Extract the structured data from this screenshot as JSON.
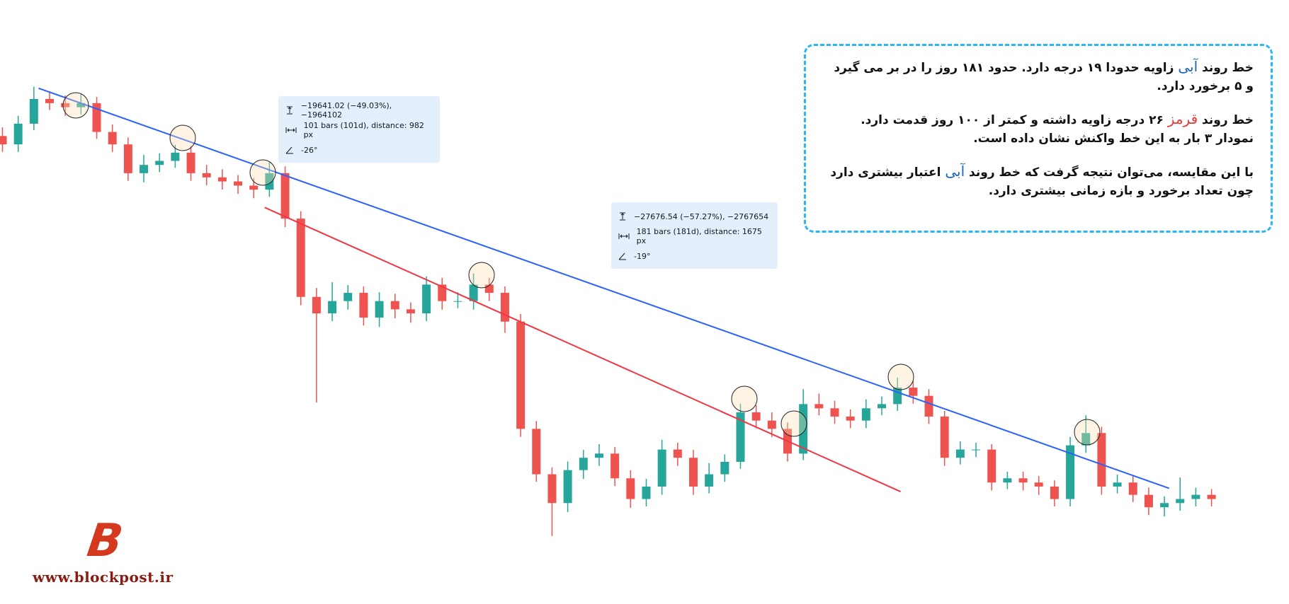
{
  "chart_data": {
    "type": "candlestick",
    "up_color": "#26a69a",
    "down_color": "#ef5350",
    "ylim": [
      15000,
      50000
    ],
    "open": [
      45000,
      44420,
      45850,
      47560,
      47270,
      46990,
      47270,
      45280,
      44420,
      42430,
      43000,
      43280,
      43850,
      42430,
      42140,
      41860,
      41570,
      41290,
      42430,
      39290,
      33880,
      32740,
      33590,
      34160,
      32450,
      33590,
      33020,
      32740,
      34730,
      33590,
      33590,
      34730,
      34160,
      32170,
      24760,
      21620,
      19630,
      21910,
      22760,
      23050,
      21340,
      19910,
      20770,
      23330,
      22760,
      20770,
      21620,
      22480,
      25900,
      25330,
      24760,
      23050,
      26470,
      26180,
      25610,
      25330,
      26180,
      26470,
      27610,
      27040,
      25610,
      22760,
      23330,
      23330,
      21050,
      21340,
      21050,
      20770,
      19910,
      23620,
      24470,
      20770,
      21050,
      20200,
      19340,
      19630,
      19910,
      20200
    ],
    "high": [
      45600,
      46400,
      48400,
      48100,
      47800,
      47900,
      47700,
      45800,
      44900,
      43700,
      43800,
      44400,
      44300,
      43000,
      42700,
      42300,
      42100,
      43200,
      42900,
      39800,
      34500,
      34900,
      34700,
      34600,
      34200,
      34100,
      33500,
      35300,
      35200,
      34200,
      35500,
      35200,
      34600,
      32700,
      25300,
      22100,
      22500,
      23300,
      23700,
      23500,
      21900,
      21300,
      24000,
      23800,
      23300,
      22400,
      23000,
      26500,
      26400,
      25900,
      25200,
      27500,
      27200,
      26700,
      26100,
      26800,
      27000,
      28300,
      28100,
      27500,
      26000,
      23900,
      23800,
      23700,
      21800,
      21800,
      21500,
      21200,
      24200,
      25700,
      24900,
      21600,
      21500,
      20700,
      20100,
      21400,
      20700,
      20600
    ],
    "low": [
      43900,
      43900,
      45400,
      46800,
      46400,
      46500,
      44800,
      43900,
      41900,
      41800,
      42500,
      42800,
      41900,
      41600,
      41300,
      41000,
      40700,
      40800,
      38700,
      33300,
      26580,
      32200,
      33000,
      31900,
      31800,
      32400,
      32100,
      32200,
      33000,
      33100,
      33000,
      33600,
      31400,
      24200,
      21100,
      17350,
      19000,
      21300,
      22200,
      20800,
      19300,
      19400,
      20200,
      22200,
      20200,
      20300,
      21100,
      22000,
      24800,
      24200,
      22500,
      22600,
      25700,
      25100,
      24800,
      24800,
      25700,
      26000,
      26500,
      25100,
      22200,
      22300,
      22800,
      20500,
      20600,
      20500,
      20200,
      19400,
      19400,
      23100,
      20200,
      20300,
      19700,
      18800,
      18700,
      19100,
      19400,
      19400
    ],
    "close": [
      44420,
      45850,
      47560,
      47270,
      46990,
      47270,
      45280,
      44420,
      42430,
      43000,
      43280,
      43850,
      42430,
      42140,
      41860,
      41570,
      41290,
      42430,
      39290,
      33880,
      32740,
      33590,
      34160,
      32450,
      33590,
      33020,
      32740,
      34730,
      33590,
      33590,
      34730,
      34160,
      32170,
      24760,
      21620,
      19630,
      21910,
      22760,
      23050,
      21340,
      19910,
      20770,
      23330,
      22760,
      20770,
      21620,
      22480,
      25900,
      25330,
      24760,
      23050,
      26470,
      26180,
      25610,
      25330,
      26180,
      26470,
      27610,
      27040,
      25610,
      22760,
      23330,
      23330,
      21050,
      21340,
      21050,
      20770,
      19910,
      23620,
      24470,
      20770,
      21050,
      20200,
      19340,
      19630,
      19910,
      20200,
      19910
    ],
    "trendlines": [
      {
        "color": "#2962ff",
        "x": [
          2.3,
          74.3
        ],
        "values": [
          48300,
          20650
        ]
      },
      {
        "color": "#f23645",
        "x": [
          16.7,
          57.2
        ],
        "values": [
          40060,
          20420
        ]
      }
    ]
  },
  "measurements": [
    {
      "price_change": "−19641.02 (−49.03%), −1964102",
      "range": "101 bars (101d), distance: 982 px",
      "angle": "-26°"
    },
    {
      "price_change": "−27676.54 (−57.27%), −2767654",
      "range": "181 bars (181d), distance: 1675 px",
      "angle": "-19°"
    }
  ],
  "note": {
    "paragraphs": [
      [
        {
          "text": "خط روند "
        },
        {
          "text": "آبی",
          "color": "#1565c0"
        },
        {
          "text": " زاویه حدودا ۱۹ درجه دارد. حدود ۱۸۱ روز را در بر می گیرد و ۵ برخورد دارد."
        }
      ],
      [
        {
          "text": "خط روند "
        },
        {
          "text": "قرمز",
          "color": "#e53935"
        },
        {
          "text": " ۲۶ درجه زاویه داشته و کمتر از ۱۰۰ روز قدمت دارد. نمودار ۳ بار به این خط واکنش نشان داده است."
        }
      ],
      [
        {
          "text": "با این مقایسه، می‌توان نتیجه گرفت که خط روند "
        },
        {
          "text": "آبی",
          "color": "#1565c0"
        },
        {
          "text": " اعتبار بیشتری دارد چون تعداد برخورد و بازه زمانی بیشتری دارد."
        }
      ]
    ]
  },
  "logo": {
    "letter": "B",
    "url": "www.blockpost.ir"
  }
}
